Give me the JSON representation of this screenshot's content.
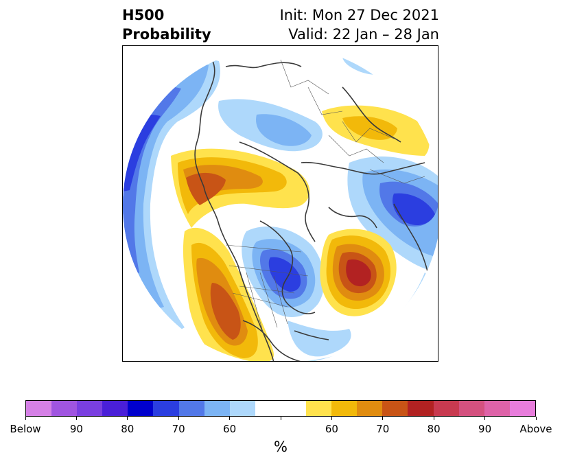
{
  "title": {
    "left_line1": "H500",
    "left_line2": "Probability",
    "right_line1": "Init: Mon 27 Dec 2021",
    "right_line2": "Valid: 22 Jan – 28 Jan"
  },
  "map": {
    "projection": "north polar stereographic",
    "anomalies": [
      {
        "region": "Southwest United States / Mexico",
        "sign": "above",
        "peak_probability": 70
      },
      {
        "region": "Western Canada / Alaska coast",
        "sign": "above",
        "peak_probability": 70
      },
      {
        "region": "North Atlantic",
        "sign": "above",
        "peak_probability": 80
      },
      {
        "region": "Northern Europe / Scandinavia",
        "sign": "above",
        "peak_probability": 65
      },
      {
        "region": "Great Lakes / Hudson Bay",
        "sign": "below",
        "peak_probability": 80
      },
      {
        "region": "Northwest Pacific / Bering",
        "sign": "below",
        "peak_probability": 70
      },
      {
        "region": "Siberia / East Asia",
        "sign": "below",
        "peak_probability": 80
      },
      {
        "region": "Arctic / Central Asia",
        "sign": "below",
        "peak_probability": 60
      }
    ]
  },
  "colorbar": {
    "colors": [
      "#d580e6",
      "#a055e0",
      "#7a3fe0",
      "#4a1fd8",
      "#0000cd",
      "#2b3ee0",
      "#5278e8",
      "#7cb4f4",
      "#aed8fb",
      "#ffffff",
      "#ffffff",
      "#ffe24d",
      "#f2b90a",
      "#e08c10",
      "#c85416",
      "#b22222",
      "#c83a50",
      "#d4517f",
      "#de63a8",
      "#e87ddc"
    ],
    "labels": [
      "Below",
      "90",
      "80",
      "70",
      "60",
      "60",
      "70",
      "80",
      "90",
      "Above"
    ],
    "unit": "%"
  }
}
